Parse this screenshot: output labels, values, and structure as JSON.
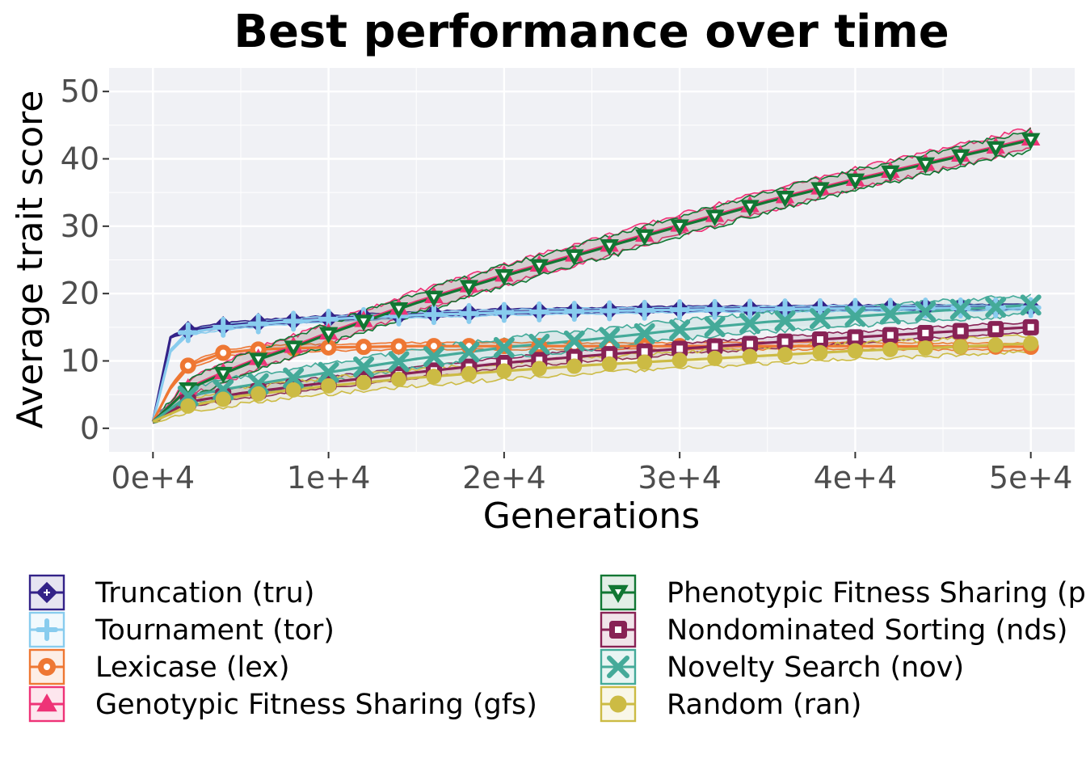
{
  "chart_data": {
    "type": "line",
    "title": "Best performance over time",
    "xlabel": "Generations",
    "ylabel": "Average trait score",
    "xlim": [
      -2500,
      52500
    ],
    "ylim": [
      -3.5,
      53.5
    ],
    "xticks": [
      0,
      10000,
      20000,
      30000,
      40000,
      50000
    ],
    "xtick_labels": [
      "0e+4",
      "1e+4",
      "2e+4",
      "3e+4",
      "4e+4",
      "5e+4"
    ],
    "yticks": [
      0,
      10,
      20,
      30,
      40,
      50
    ],
    "ytick_labels": [
      "0",
      "10",
      "20",
      "30",
      "40",
      "50"
    ],
    "grid": true,
    "legend_position": "bottom",
    "marker_every": 2000,
    "series": [
      {
        "name": "Truncation (tru)",
        "color": "#332288",
        "marker": "diamond",
        "ribbon": 0.4,
        "x": [
          0,
          1000,
          2000,
          4000,
          6000,
          8000,
          10000,
          15000,
          20000,
          30000,
          40000,
          50000
        ],
        "y": [
          1,
          13.5,
          14.5,
          15.2,
          15.7,
          16.0,
          16.3,
          16.9,
          17.3,
          17.7,
          17.9,
          18.0
        ]
      },
      {
        "name": "Tournament (tor)",
        "color": "#88CCEE",
        "marker": "plus",
        "ribbon": 0.4,
        "x": [
          0,
          1000,
          2000,
          4000,
          6000,
          8000,
          10000,
          15000,
          20000,
          30000,
          40000,
          50000
        ],
        "y": [
          1,
          11.5,
          14.2,
          15.0,
          15.5,
          15.9,
          16.2,
          16.8,
          17.2,
          17.6,
          17.8,
          17.9
        ]
      },
      {
        "name": "Lexicase (lex)",
        "color": "#EE7733",
        "marker": "circle-open",
        "ribbon": 0.5,
        "x": [
          0,
          1000,
          2000,
          4000,
          6000,
          8000,
          10000,
          15000,
          20000,
          30000,
          40000,
          50000
        ],
        "y": [
          1,
          6.0,
          9.3,
          11.2,
          11.7,
          11.9,
          12.0,
          12.2,
          12.2,
          12.2,
          12.2,
          12.1
        ]
      },
      {
        "name": "Genotypic Fitness Sharing (gfs)",
        "color": "#EE3377",
        "marker": "triangle-up",
        "ribbon": 1.5,
        "x": [
          0,
          2000,
          4000,
          6000,
          8000,
          10000,
          15000,
          20000,
          25000,
          30000,
          35000,
          40000,
          45000,
          50000
        ],
        "y": [
          1,
          6.0,
          8.3,
          10.4,
          12.2,
          14.2,
          18.8,
          22.8,
          26.5,
          30.2,
          33.8,
          37.0,
          40.0,
          43.0
        ]
      },
      {
        "name": "Phenotypic Fitness Sharing (pfs)",
        "color": "#117733",
        "marker": "triangle-down",
        "ribbon": 1.5,
        "x": [
          0,
          2000,
          4000,
          6000,
          8000,
          10000,
          15000,
          20000,
          25000,
          30000,
          35000,
          40000,
          45000,
          50000
        ],
        "y": [
          1,
          5.8,
          8.1,
          10.2,
          12.0,
          14.0,
          18.6,
          22.6,
          26.3,
          30.0,
          33.6,
          36.8,
          39.8,
          42.8
        ]
      },
      {
        "name": "Nondominated Sorting (nds)",
        "color": "#882255",
        "marker": "square-open",
        "ribbon": 0.8,
        "x": [
          0,
          2000,
          5000,
          10000,
          15000,
          20000,
          25000,
          30000,
          35000,
          40000,
          45000,
          50000
        ],
        "y": [
          1,
          3.9,
          5.2,
          6.8,
          8.3,
          9.7,
          10.8,
          11.8,
          12.7,
          13.5,
          14.3,
          15.0
        ]
      },
      {
        "name": "Novelty Search (nov)",
        "color": "#44AA99",
        "marker": "x",
        "ribbon": 1.4,
        "x": [
          0,
          2000,
          5000,
          10000,
          15000,
          20000,
          25000,
          30000,
          35000,
          40000,
          45000,
          50000
        ],
        "y": [
          1,
          4.8,
          6.2,
          8.3,
          10.3,
          12.0,
          13.2,
          14.6,
          15.8,
          16.6,
          17.5,
          18.3
        ]
      },
      {
        "name": "Random (ran)",
        "color": "#CCBB44",
        "marker": "circle-filled",
        "ribbon": 1.2,
        "x": [
          0,
          2000,
          5000,
          10000,
          15000,
          20000,
          25000,
          30000,
          35000,
          40000,
          45000,
          50000
        ],
        "y": [
          1,
          3.3,
          4.8,
          6.3,
          7.5,
          8.5,
          9.4,
          10.1,
          10.8,
          11.5,
          12.0,
          12.6
        ]
      }
    ]
  }
}
